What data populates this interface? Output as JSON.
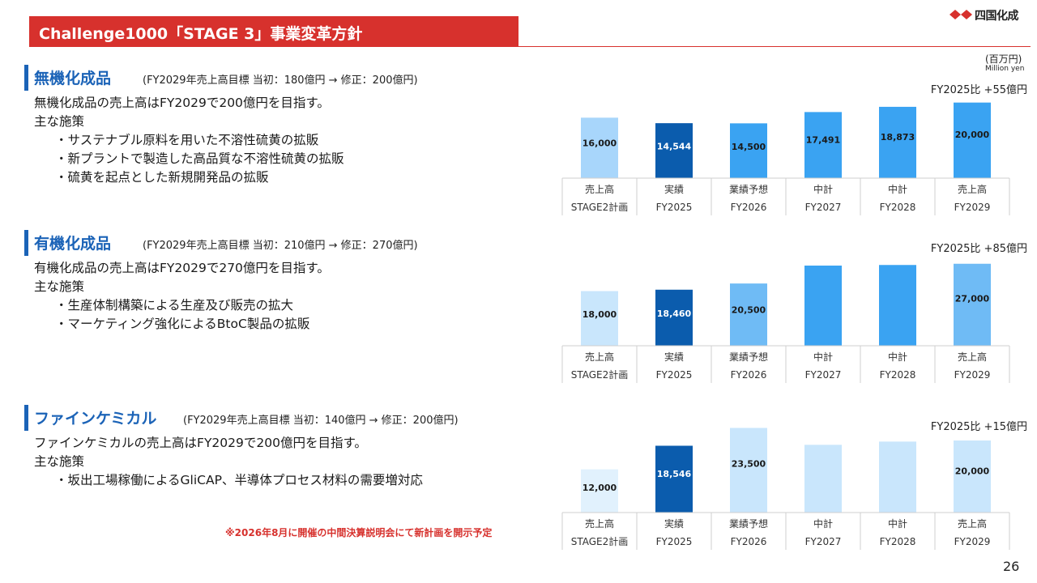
{
  "header": {
    "title": "Challenge1000「STAGE 3」事業変革方針",
    "logo_text": "四国化成",
    "unit_jp": "(百万円)",
    "unit_en": "Million yen"
  },
  "colors": {
    "brand_red": "#d7312d",
    "heading_blue": "#1b63b7",
    "bar_dark": "#0b5cad",
    "bar_mid": "#3aa3f2",
    "bar_light": "#a8d6fb",
    "bar_pale": "#c9e6fc",
    "bar_faint": "#e1f1fd"
  },
  "sections": [
    {
      "heading": "無機化成品",
      "target": "(FY2029年売上高目標 当初：180億円 → 修正：200億円)",
      "lines": [
        "無機化成品の売上高はFY2029で200億円を目指す。",
        "主な施策",
        "・サステナブル原料を用いた不溶性硫黄の拡販",
        "・新プラントで製造した高品質な不溶性硫黄の拡販",
        "・硫黄を起点とした新規開発品の拡販"
      ]
    },
    {
      "heading": "有機化成品",
      "target": "(FY2029年売上高目標 当初：210億円 → 修正：270億円)",
      "lines": [
        "有機化成品の売上高はFY2029で270億円を目指す。",
        "主な施策",
        "・生産体制構築による生産及び販売の拡大",
        "・マーケティング強化によるBtoC製品の拡販"
      ]
    },
    {
      "heading": "ファインケミカル",
      "target": "(FY2029年売上高目標 当初：140億円 → 修正：200億円)",
      "lines": [
        "ファインケミカルの売上高はFY2029で200億円を目指す。",
        "主な施策",
        "・坂出工場稼働によるGliCAP、半導体プロセス材料の需要増対応"
      ]
    }
  ],
  "chart_data": [
    {
      "type": "bar",
      "title": "無機化成品",
      "note": "FY2025比 +55億円",
      "categories": [
        [
          "売上高",
          "STAGE2計画"
        ],
        [
          "実績",
          "FY2025"
        ],
        [
          "業績予想",
          "FY2026"
        ],
        [
          "中計",
          "FY2027"
        ],
        [
          "中計",
          "FY2028"
        ],
        [
          "売上高",
          "FY2029"
        ]
      ],
      "values": [
        16000,
        14544,
        14500,
        17491,
        18873,
        20000
      ],
      "labels": [
        "16,000",
        "14,544",
        "14,500",
        "17,491",
        "18,873",
        "20,000"
      ],
      "bar_colors": [
        "#a8d6fb",
        "#0b5cad",
        "#3aa3f2",
        "#3aa3f2",
        "#3aa3f2",
        "#3aa3f2"
      ],
      "label_colors": [
        "#1a1a1a",
        "#ffffff",
        "#1a1a1a",
        "#1a1a1a",
        "#1a1a1a",
        "#1a1a1a"
      ],
      "ylim": [
        0,
        21000
      ]
    },
    {
      "type": "bar",
      "title": "有機化成品",
      "note": "FY2025比 +85億円",
      "categories": [
        [
          "売上高",
          "STAGE2計画"
        ],
        [
          "実績",
          "FY2025"
        ],
        [
          "業績予想",
          "FY2026"
        ],
        [
          "中計",
          "FY2027"
        ],
        [
          "中計",
          "FY2028"
        ],
        [
          "売上高",
          "FY2029"
        ]
      ],
      "values": [
        18000,
        18460,
        20500,
        26400,
        26600,
        27000
      ],
      "labels": [
        "18,000",
        "18,460",
        "20,500",
        "",
        "",
        "27,000"
      ],
      "bar_colors": [
        "#c9e6fc",
        "#0b5cad",
        "#6fbbf5",
        "#3aa3f2",
        "#3aa3f2",
        "#6fbbf5"
      ],
      "label_colors": [
        "#1a1a1a",
        "#ffffff",
        "#1a1a1a",
        "#1a1a1a",
        "#1a1a1a",
        "#1a1a1a"
      ],
      "ylim": [
        0,
        28000
      ]
    },
    {
      "type": "bar",
      "title": "ファインケミカル",
      "note": "FY2025比 +15億円",
      "categories": [
        [
          "売上高",
          "STAGE2計画"
        ],
        [
          "実績",
          "FY2025"
        ],
        [
          "業績予想",
          "FY2026"
        ],
        [
          "中計",
          "FY2027"
        ],
        [
          "中計",
          "FY2028"
        ],
        [
          "売上高",
          "FY2029"
        ]
      ],
      "values": [
        12000,
        18546,
        23500,
        18800,
        19700,
        20000
      ],
      "labels": [
        "12,000",
        "18,546",
        "23,500",
        "",
        "",
        "20,000"
      ],
      "bar_colors": [
        "#e1f1fd",
        "#0b5cad",
        "#c9e6fc",
        "#c9e6fc",
        "#c9e6fc",
        "#c9e6fc"
      ],
      "label_colors": [
        "#1a1a1a",
        "#ffffff",
        "#1a1a1a",
        "#1a1a1a",
        "#1a1a1a",
        "#1a1a1a"
      ],
      "ylim": [
        0,
        24500
      ]
    }
  ],
  "footer": {
    "footnote": "※2026年8月に開催の中間決算説明会にて新計画を開示予定",
    "page_number": "26"
  }
}
